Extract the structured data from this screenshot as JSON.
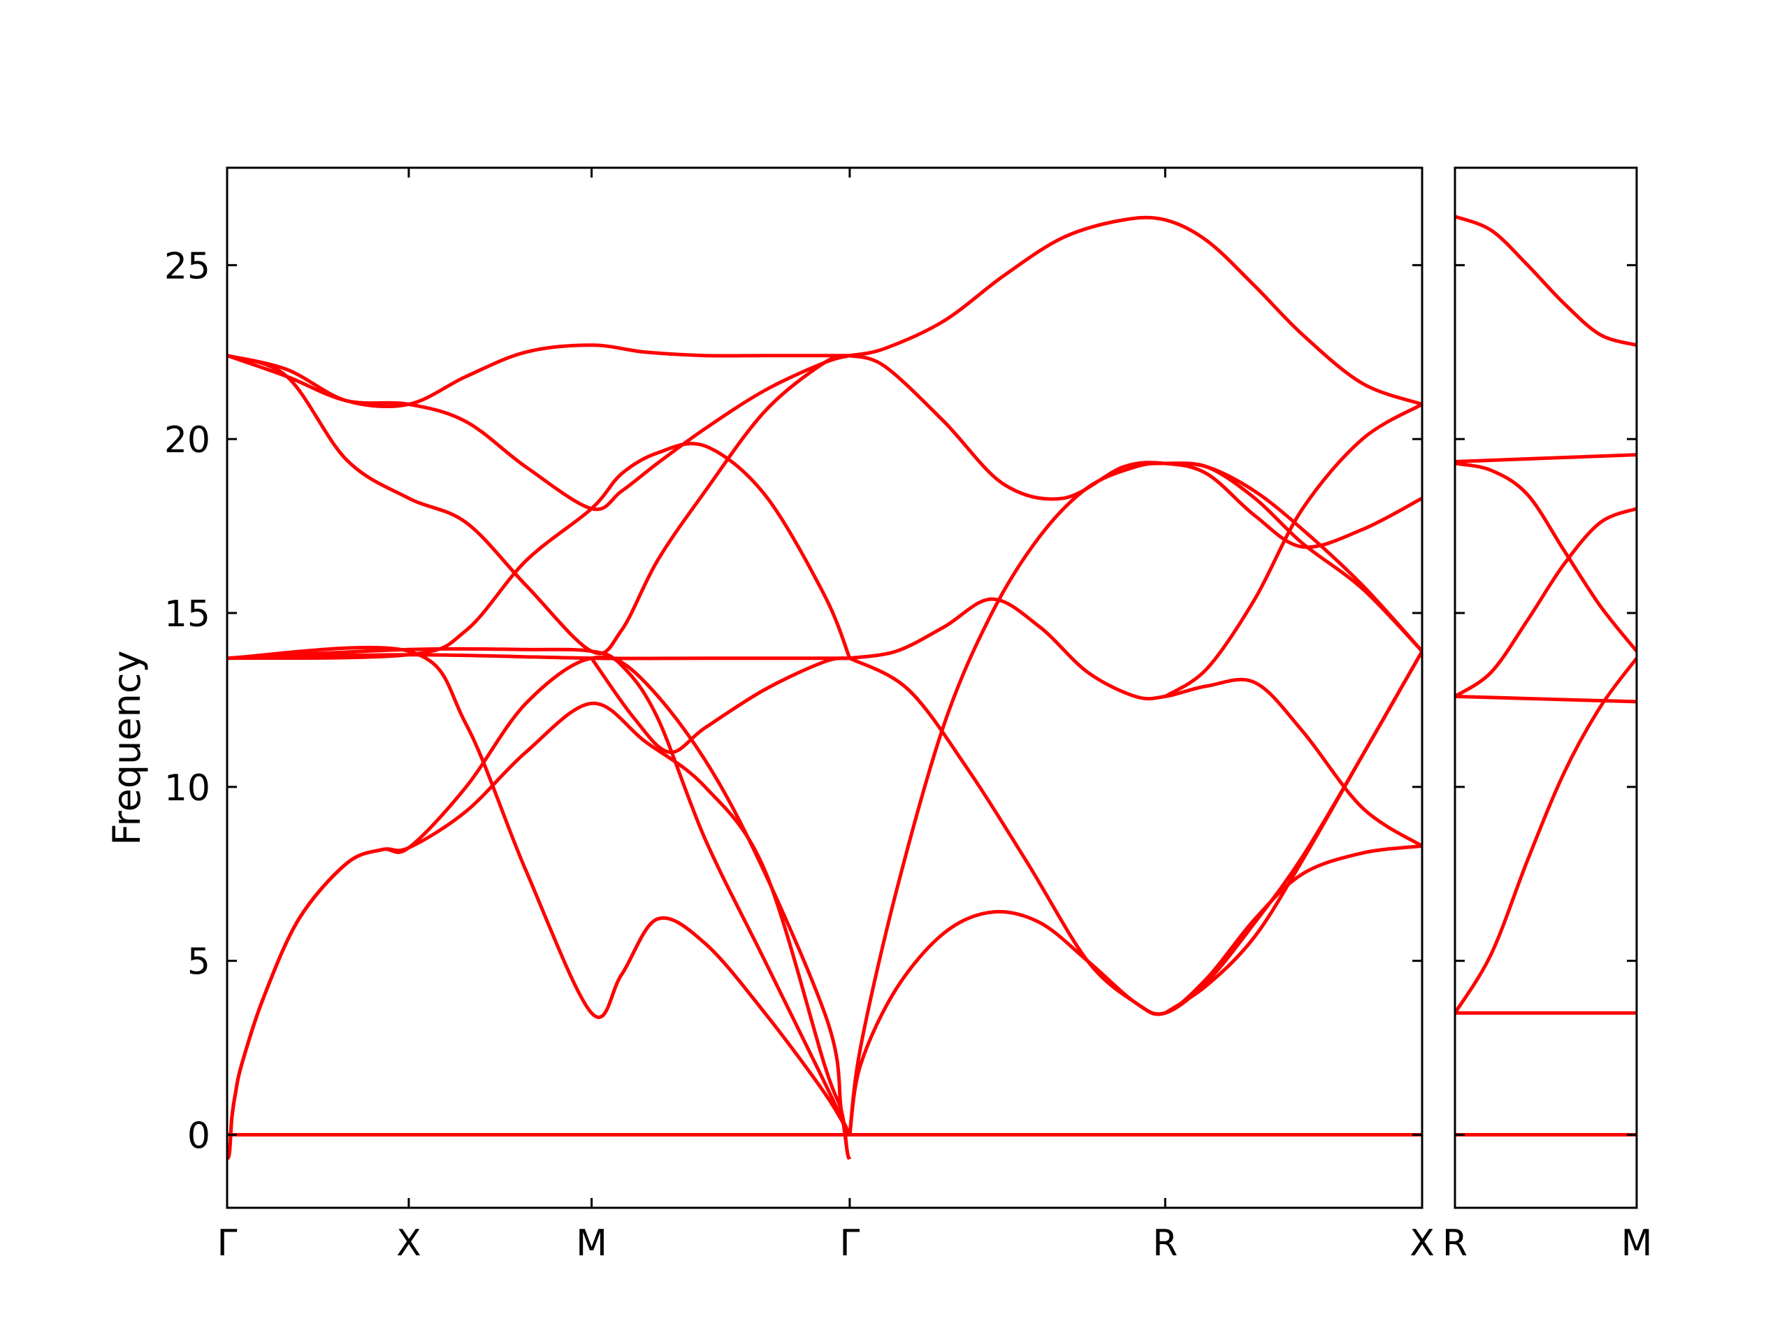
{
  "colors": {
    "band": "#ff0000",
    "axes": "#000000",
    "background": "#ffffff"
  },
  "chart_data": {
    "type": "line",
    "title": "",
    "ylabel": "Frequency",
    "ylim": [
      -2.1,
      27.8
    ],
    "yticks": [
      0,
      5,
      10,
      15,
      20,
      25
    ],
    "yticklabels": [
      "0",
      "5",
      "10",
      "15",
      "20",
      "25"
    ],
    "grid": false,
    "legend": "none",
    "panels": [
      {
        "name": "path-gxmgrx",
        "xlim": [
          0,
          1
        ],
        "ticks": [
          0,
          0.152,
          0.305,
          0.521,
          0.785,
          1
        ],
        "ticklabels": [
          "Γ",
          "X",
          "M",
          "Γ",
          "R",
          "X"
        ],
        "series": [
          {
            "x": [
              0,
              0.152,
              0.305,
              0.521,
              0.785,
              1
            ],
            "values": [
              0,
              0,
              0,
              0,
              0,
              0
            ]
          },
          {
            "x": [
              0,
              0.002,
              0.004,
              0.007,
              0.012,
              0.03,
              0.06,
              0.1,
              0.13,
              0.152,
              0.2,
              0.25,
              0.305,
              0.35,
              0.4,
              0.45,
              0.5,
              0.514,
              0.519,
              0.521
            ],
            "values": [
              -0.7,
              -0.5,
              0.5,
              1.2,
              2.0,
              3.9,
              6.2,
              7.8,
              8.2,
              8.25,
              9.3,
              11.0,
              12.4,
              11.3,
              10.0,
              7.6,
              2.0,
              0.7,
              -0.5,
              -0.7
            ]
          },
          {
            "x": [
              0,
              0.002,
              0.004,
              0.007,
              0.012,
              0.03,
              0.06,
              0.1,
              0.13,
              0.152,
              0.2,
              0.25,
              0.305,
              0.35,
              0.42,
              0.5,
              0.514,
              0.519,
              0.521
            ],
            "values": [
              -0.7,
              -0.5,
              0.5,
              1.2,
              2.0,
              3.9,
              6.2,
              7.8,
              8.2,
              8.25,
              10.0,
              12.4,
              13.7,
              13.0,
              9.6,
              3.5,
              0.7,
              -0.5,
              -0.7
            ]
          },
          {
            "x": [
              0,
              0.005,
              0.01,
              0.05,
              0.1,
              0.152,
              0.2,
              0.25,
              0.305,
              0.35,
              0.4,
              0.45,
              0.48,
              0.505,
              0.515,
              0.521
            ],
            "values": [
              0,
              1.0,
              2.5,
              7.0,
              11.5,
              13.8,
              16.8,
              18.8,
              19.5,
              19.0,
              16.5,
              12.5,
              8.0,
              2.5,
              0.5,
              0
            ],
            "marks": "hidden-duplicate-guard"
          },
          {
            "x": [
              0,
              0.005,
              0.01,
              0.05,
              0.1,
              0.152,
              0.2,
              0.25,
              0.305,
              0.33,
              0.36,
              0.41,
              0.46,
              0.49,
              0.505,
              0.515,
              0.521
            ],
            "values": [
              0,
              0.3,
              1.0,
              5.5,
              10.6,
              13.8,
              17.5,
              19.2,
              19.5,
              19.2,
              17.5,
              13.0,
              8.0,
              4.0,
              1.5,
              0.3,
              0
            ],
            "role": "acoustic-LA-ghost",
            "hidden": true
          },
          {
            "x": [
              0,
              0.05,
              0.1,
              0.152,
              0.2,
              0.25,
              0.305,
              0.35,
              0.4,
              0.45,
              0.5,
              0.521
            ],
            "values": [
              22.4,
              22.0,
              21.1,
              21.0,
              21.8,
              22.5,
              22.7,
              22.5,
              22.4,
              22.4,
              22.4,
              22.4
            ]
          },
          {
            "x": [
              0,
              0.05,
              0.1,
              0.152,
              0.2,
              0.25,
              0.305,
              0.33,
              0.36,
              0.4,
              0.45,
              0.5,
              0.521
            ],
            "values": [
              22.4,
              21.8,
              19.4,
              18.3,
              17.6,
              15.8,
              13.9,
              14.5,
              16.5,
              18.5,
              20.8,
              22.2,
              22.4
            ]
          },
          {
            "x": [
              0,
              0.05,
              0.1,
              0.152,
              0.2,
              0.25,
              0.305,
              0.33,
              0.36,
              0.4,
              0.45,
              0.5,
              0.521
            ],
            "values": [
              22.4,
              21.8,
              21.1,
              21.0,
              20.5,
              19.2,
              18.0,
              18.5,
              19.3,
              20.3,
              21.4,
              22.2,
              22.4
            ]
          },
          {
            "x": [
              0,
              0.152,
              0.305,
              0.4,
              0.521
            ],
            "values": [
              13.7,
              13.8,
              13.7,
              13.7,
              13.7
            ]
          },
          {
            "x": [
              0,
              0.152,
              0.25,
              0.305,
              0.33,
              0.36,
              0.4,
              0.45,
              0.5,
              0.521
            ],
            "values": [
              13.7,
              13.95,
              13.95,
              13.9,
              13.5,
              12.0,
              8.5,
              5.0,
              1.5,
              0
            ]
          },
          {
            "x": [
              0,
              0.152,
              0.2,
              0.25,
              0.305,
              0.33,
              0.36,
              0.4,
              0.45,
              0.5,
              0.521
            ],
            "values": [
              13.7,
              13.9,
              11.8,
              7.6,
              3.5,
              4.6,
              6.2,
              5.5,
              3.5,
              1.2,
              0
            ]
          },
          {
            "x": [
              0,
              0.152,
              0.2,
              0.25,
              0.305,
              0.33,
              0.36,
              0.4,
              0.45,
              0.5,
              0.521
            ],
            "values": [
              13.7,
              13.8,
              14.5,
              16.5,
              18.0,
              19.0,
              19.6,
              19.8,
              18.4,
              15.5,
              13.7
            ]
          },
          {
            "x": [
              0.305,
              0.34,
              0.37,
              0.4,
              0.45,
              0.5,
              0.521
            ],
            "values": [
              13.7,
              12.0,
              11.0,
              11.7,
              12.8,
              13.6,
              13.7
            ]
          },
          {
            "x": [
              0.521,
              0.55,
              0.6,
              0.65,
              0.7,
              0.75,
              0.785,
              0.82,
              0.86,
              0.9,
              0.95,
              1
            ],
            "values": [
              22.4,
              22.6,
              23.4,
              24.7,
              25.8,
              26.3,
              26.3,
              25.7,
              24.4,
              23.0,
              21.6,
              21.0
            ]
          },
          {
            "x": [
              0.521,
              0.55,
              0.6,
              0.65,
              0.7,
              0.75,
              0.785,
              0.82,
              0.86,
              0.9,
              0.95,
              1
            ],
            "values": [
              22.4,
              22.1,
              20.5,
              18.7,
              18.3,
              19.2,
              19.3,
              19.0,
              17.8,
              16.9,
              17.4,
              18.3
            ]
          },
          {
            "x": [
              0.521,
              0.56,
              0.6,
              0.64,
              0.68,
              0.72,
              0.76,
              0.785,
              0.82,
              0.86,
              0.9,
              0.95,
              1
            ],
            "values": [
              13.7,
              13.9,
              14.6,
              15.4,
              14.6,
              13.3,
              12.6,
              12.6,
              12.9,
              13.0,
              11.6,
              9.4,
              8.3
            ]
          },
          {
            "x": [
              0.521,
              0.57,
              0.62,
              0.67,
              0.72,
              0.76,
              0.785,
              0.82,
              0.86,
              0.9,
              0.95,
              1
            ],
            "values": [
              13.7,
              12.8,
              10.5,
              7.8,
              5.0,
              3.8,
              3.5,
              4.5,
              6.2,
              7.5,
              8.1,
              8.3
            ]
          },
          {
            "x": [
              0.521,
              0.53,
              0.56,
              0.6,
              0.64,
              0.68,
              0.72,
              0.76,
              0.785,
              0.82,
              0.86,
              0.9,
              0.95,
              1
            ],
            "values": [
              0,
              2.0,
              4.2,
              5.8,
              6.4,
              6.1,
              5.0,
              3.8,
              3.5,
              4.4,
              6.1,
              8.0,
              10.9,
              13.9
            ]
          },
          {
            "x": [
              0.521,
              0.53,
              0.56,
              0.6,
              0.64,
              0.68,
              0.72,
              0.76,
              0.785,
              0.82,
              0.86,
              0.9,
              0.95,
              1
            ],
            "values": [
              0,
              2.5,
              7.0,
              11.8,
              15.0,
              17.2,
              18.6,
              19.2,
              19.3,
              19.2,
              18.5,
              17.4,
              15.8,
              13.9
            ]
          },
          {
            "x": [
              0.785,
              0.82,
              0.86,
              0.9,
              0.95,
              1
            ],
            "values": [
              19.3,
              19.2,
              18.3,
              17.0,
              15.7,
              13.9
            ]
          },
          {
            "x": [
              0.785,
              0.82,
              0.86,
              0.9,
              0.95,
              1
            ],
            "values": [
              12.6,
              13.4,
              15.4,
              18.0,
              20.0,
              21.0
            ]
          },
          {
            "x": [
              0.785,
              0.82,
              0.86,
              0.9,
              0.95,
              1
            ],
            "values": [
              3.5,
              4.3,
              5.7,
              7.9,
              10.9,
              13.9
            ]
          }
        ]
      },
      {
        "name": "path-rm",
        "xlim": [
          0,
          1
        ],
        "ticks": [
          0,
          1
        ],
        "ticklabels": [
          "R",
          "M"
        ],
        "series": [
          {
            "x": [
              0,
              1
            ],
            "values": [
              0,
              0
            ]
          },
          {
            "x": [
              0,
              1
            ],
            "values": [
              3.5,
              3.5
            ]
          },
          {
            "x": [
              0,
              0.2,
              0.4,
              0.6,
              0.8,
              1
            ],
            "values": [
              3.5,
              5.2,
              7.9,
              10.4,
              12.3,
              13.7
            ]
          },
          {
            "x": [
              0,
              1
            ],
            "values": [
              12.6,
              12.45
            ]
          },
          {
            "x": [
              0,
              0.2,
              0.4,
              0.6,
              0.8,
              1
            ],
            "values": [
              12.6,
              13.3,
              14.8,
              16.4,
              17.6,
              18.0
            ]
          },
          {
            "x": [
              0,
              0.2,
              0.4,
              0.6,
              0.8,
              1
            ],
            "values": [
              19.3,
              19.1,
              18.4,
              16.8,
              15.2,
              13.9
            ]
          },
          {
            "x": [
              0,
              0.5,
              1
            ],
            "values": [
              19.35,
              19.45,
              19.55
            ]
          },
          {
            "x": [
              0,
              0.2,
              0.4,
              0.6,
              0.8,
              1
            ],
            "values": [
              26.4,
              26.0,
              25.0,
              23.9,
              23.0,
              22.7
            ]
          }
        ]
      }
    ]
  }
}
